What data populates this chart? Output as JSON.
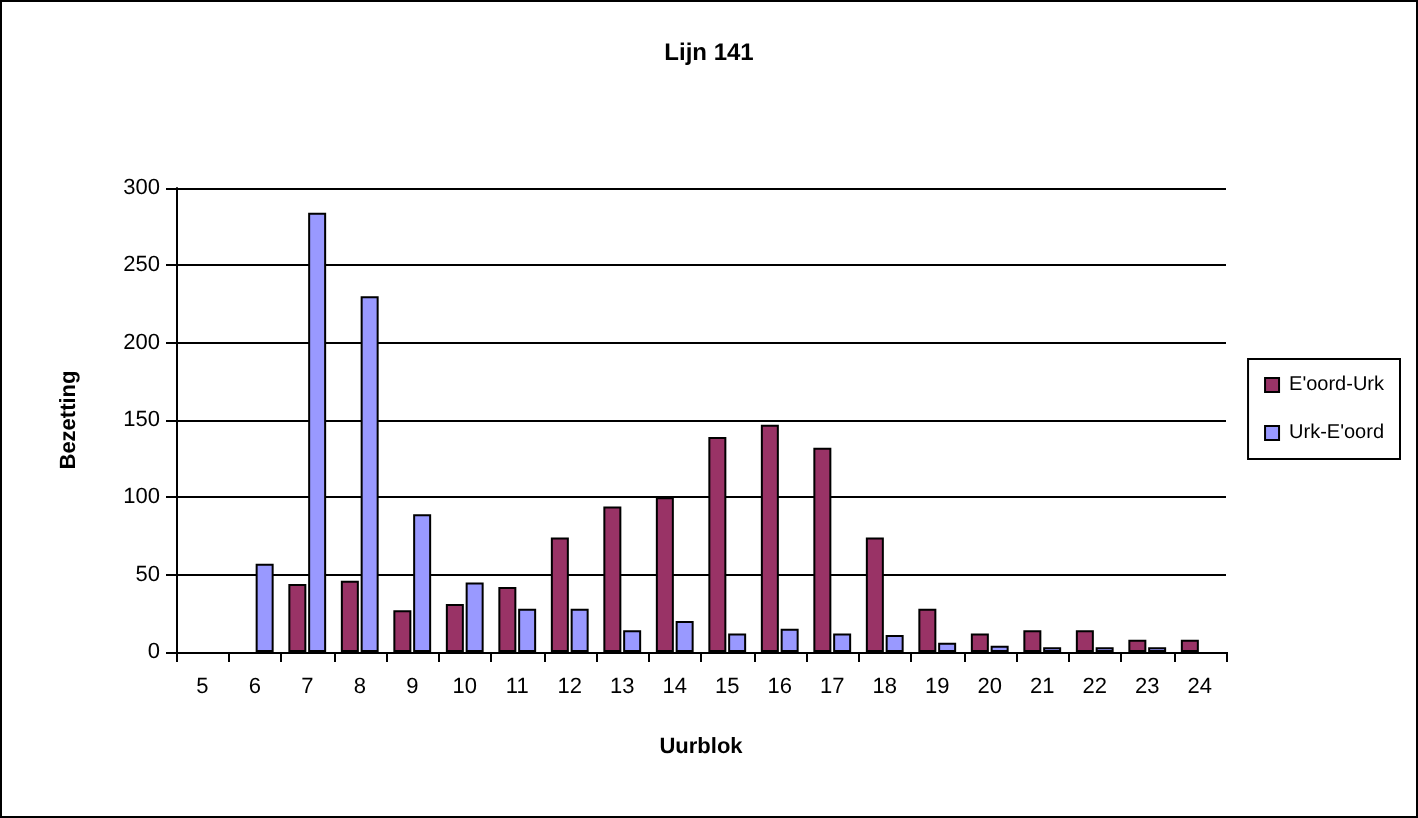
{
  "chart_data": {
    "type": "bar",
    "title": "Lijn 141",
    "xlabel": "Uurblok",
    "ylabel": "Bezetting",
    "categories": [
      "5",
      "6",
      "7",
      "8",
      "9",
      "10",
      "11",
      "12",
      "13",
      "14",
      "15",
      "16",
      "17",
      "18",
      "19",
      "20",
      "21",
      "22",
      "23",
      "24"
    ],
    "series": [
      {
        "name": "E'oord-Urk",
        "color": "#993366",
        "values": [
          null,
          null,
          44,
          46,
          27,
          31,
          42,
          74,
          94,
          100,
          139,
          147,
          132,
          74,
          28,
          12,
          14,
          14,
          8,
          8
        ]
      },
      {
        "name": "Urk-E'oord",
        "color": "#9999ff",
        "values": [
          null,
          57,
          284,
          230,
          89,
          45,
          28,
          28,
          14,
          20,
          12,
          15,
          12,
          11,
          6,
          4,
          3,
          3,
          3,
          null
        ]
      }
    ],
    "ylim": [
      0,
      300
    ],
    "yticks": [
      0,
      50,
      100,
      150,
      200,
      250,
      300
    ],
    "grid": "y",
    "legend": "right"
  }
}
